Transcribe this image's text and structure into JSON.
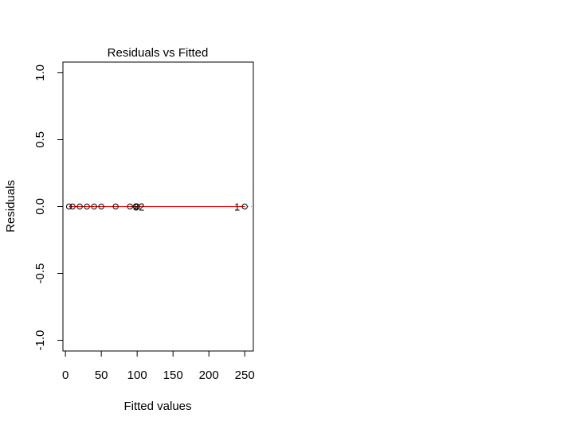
{
  "chart_data": {
    "type": "scatter",
    "title": "Residuals vs Fitted",
    "xlabel": "Fitted values",
    "ylabel": "Residuals",
    "xlim": [
      -3.5,
      262
    ],
    "ylim": [
      -1.08,
      1.08
    ],
    "x_ticks": [
      0,
      50,
      100,
      150,
      200,
      250
    ],
    "y_ticks": [
      -1.0,
      -0.5,
      0.0,
      0.5,
      1.0
    ],
    "x_tick_labels": [
      "0",
      "50",
      "100",
      "150",
      "200",
      "250"
    ],
    "y_tick_labels": [
      "-1.0",
      "-0.5",
      "0.0",
      "0.5",
      "1.0"
    ],
    "grid": false,
    "reference_line": {
      "y": 0,
      "color": "#999999",
      "style": "dotted"
    },
    "smooth_line": {
      "color": "#ff0000",
      "points": [
        [
          5,
          0
        ],
        [
          250,
          0
        ]
      ]
    },
    "points": [
      {
        "x": 5,
        "y": 0
      },
      {
        "x": 10,
        "y": 0
      },
      {
        "x": 20,
        "y": 0
      },
      {
        "x": 30,
        "y": 0
      },
      {
        "x": 40,
        "y": 0
      },
      {
        "x": 50,
        "y": 0
      },
      {
        "x": 70,
        "y": 0
      },
      {
        "x": 90,
        "y": 0
      },
      {
        "x": 98,
        "y": 0
      },
      {
        "x": 100,
        "y": 0
      },
      {
        "x": 250,
        "y": 0
      }
    ],
    "point_labels": [
      {
        "text": "3",
        "x": 100,
        "y": 0
      },
      {
        "text": "2",
        "x": 100,
        "y": 0
      },
      {
        "text": "1",
        "x": 250,
        "y": 0
      }
    ]
  }
}
